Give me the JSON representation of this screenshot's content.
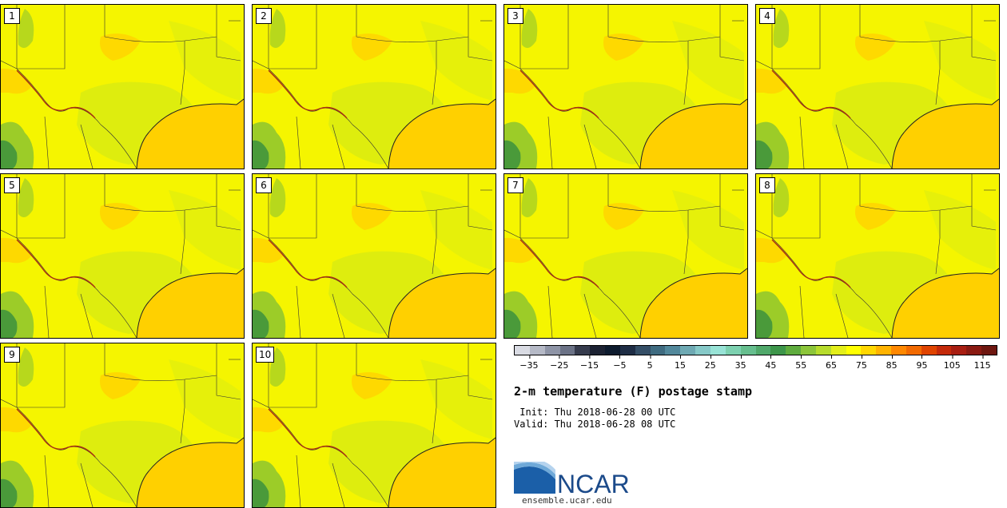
{
  "panels": [
    {
      "label": "1"
    },
    {
      "label": "2"
    },
    {
      "label": "3"
    },
    {
      "label": "4"
    },
    {
      "label": "5"
    },
    {
      "label": "6"
    },
    {
      "label": "7"
    },
    {
      "label": "8"
    },
    {
      "label": "9"
    },
    {
      "label": "10"
    }
  ],
  "colorbar": {
    "colors": [
      "#d9dbe3",
      "#b5b9c6",
      "#8e94a6",
      "#6b7286",
      "#363b4d",
      "#1c2233",
      "#0d1b2e",
      "#1e2d45",
      "#344e66",
      "#3f6b80",
      "#52889b",
      "#6ea9b3",
      "#86c9c8",
      "#98e3d6",
      "#7dd1b0",
      "#66be8e",
      "#50a86a",
      "#3d954a",
      "#5fac3e",
      "#8cc53a",
      "#b7dc2c",
      "#e3ee1a",
      "#ffff00",
      "#ffd700",
      "#ffb300",
      "#ff8800",
      "#f26a00",
      "#e04400",
      "#c42a0a",
      "#a81e12",
      "#8a1a12",
      "#6e1710"
    ],
    "ticks": [
      "−35",
      "−25",
      "−15",
      "−5",
      "5",
      "15",
      "25",
      "35",
      "45",
      "55",
      "65",
      "75",
      "85",
      "95",
      "105",
      "115"
    ],
    "range": [
      -40,
      120
    ]
  },
  "title": "2-m temperature (F) postage stamp",
  "init_label": " Init: Thu 2018-06-28 00 UTC",
  "valid_label": "Valid: Thu 2018-06-28 08 UTC",
  "logo": {
    "text": "NCAR",
    "url": "ensemble.ucar.edu"
  },
  "map_colors": {
    "land": "#f5f500",
    "warm": "#ffd400",
    "cool": "#dcec10",
    "green": "#9ccc28",
    "dark": "#4a9a3a",
    "gulf": "#ffd000"
  }
}
